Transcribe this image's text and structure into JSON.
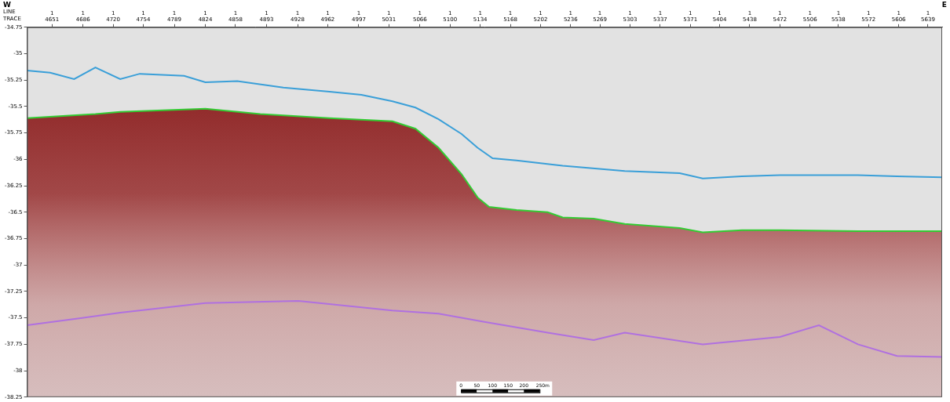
{
  "chart_data": {
    "type": "line",
    "left_label": "W",
    "right_label": "E",
    "axis_row_labels": [
      "LINE",
      "TRACE"
    ],
    "line_number": "1",
    "xlim": [
      4623,
      5655
    ],
    "xticks": [
      4651,
      4686,
      4720,
      4754,
      4789,
      4824,
      4858,
      4893,
      4928,
      4962,
      4997,
      5031,
      5066,
      5100,
      5134,
      5168,
      5202,
      5236,
      5269,
      5303,
      5337,
      5371,
      5404,
      5438,
      5472,
      5506,
      5538,
      5572,
      5606,
      5639
    ],
    "ylim": [
      -38.25,
      -34.75
    ],
    "yticks": [
      -34.75,
      -35,
      -35.25,
      -35.5,
      -35.75,
      -36,
      -36.25,
      -36.5,
      -36.75,
      -37,
      -37.25,
      -37.5,
      -37.75,
      -38,
      -38.25
    ],
    "grid": false,
    "series": [
      {
        "color": "#3a9fd8",
        "x": [
          4623,
          4649,
          4676,
          4700,
          4728,
          4750,
          4800,
          4824,
          4860,
          4912,
          4964,
          5000,
          5035,
          5061,
          5087,
          5113,
          5131,
          5148,
          5175,
          5227,
          5297,
          5359,
          5385,
          5429,
          5472,
          5560,
          5604,
          5655
        ],
        "values": [
          -35.16,
          -35.18,
          -35.24,
          -35.13,
          -35.24,
          -35.19,
          -35.21,
          -35.27,
          -35.26,
          -35.32,
          -35.36,
          -35.39,
          -35.45,
          -35.51,
          -35.62,
          -35.76,
          -35.89,
          -35.99,
          -36.01,
          -36.06,
          -36.11,
          -36.13,
          -36.18,
          -36.16,
          -36.15,
          -36.15,
          -36.16,
          -36.17
        ]
      },
      {
        "color": "#33cc33",
        "x": [
          4623,
          4700,
          4728,
          4824,
          4886,
          4964,
          5035,
          5061,
          5087,
          5113,
          5131,
          5144,
          5175,
          5210,
          5227,
          5262,
          5297,
          5359,
          5385,
          5429,
          5472,
          5560,
          5655
        ],
        "values": [
          -35.61,
          -35.57,
          -35.55,
          -35.52,
          -35.57,
          -35.61,
          -35.64,
          -35.71,
          -35.89,
          -36.14,
          -36.36,
          -36.45,
          -36.48,
          -36.5,
          -36.55,
          -36.56,
          -36.61,
          -36.65,
          -36.69,
          -36.67,
          -36.67,
          -36.68,
          -36.68
        ]
      },
      {
        "color": "#b070e0",
        "x": [
          4623,
          4685,
          4728,
          4824,
          4929,
          5035,
          5087,
          5140,
          5210,
          5262,
          5297,
          5385,
          5472,
          5516,
          5560,
          5604,
          5655
        ],
        "values": [
          -37.57,
          -37.5,
          -37.45,
          -37.36,
          -37.34,
          -37.43,
          -37.46,
          -37.54,
          -37.64,
          -37.71,
          -37.64,
          -37.75,
          -37.68,
          -37.57,
          -37.75,
          -37.86,
          -37.87
        ]
      }
    ],
    "scale_bar": {
      "values": [
        0,
        50,
        100,
        150,
        200,
        250
      ],
      "labels": [
        "0",
        "50",
        "100",
        "150",
        "200",
        "250m"
      ]
    }
  }
}
